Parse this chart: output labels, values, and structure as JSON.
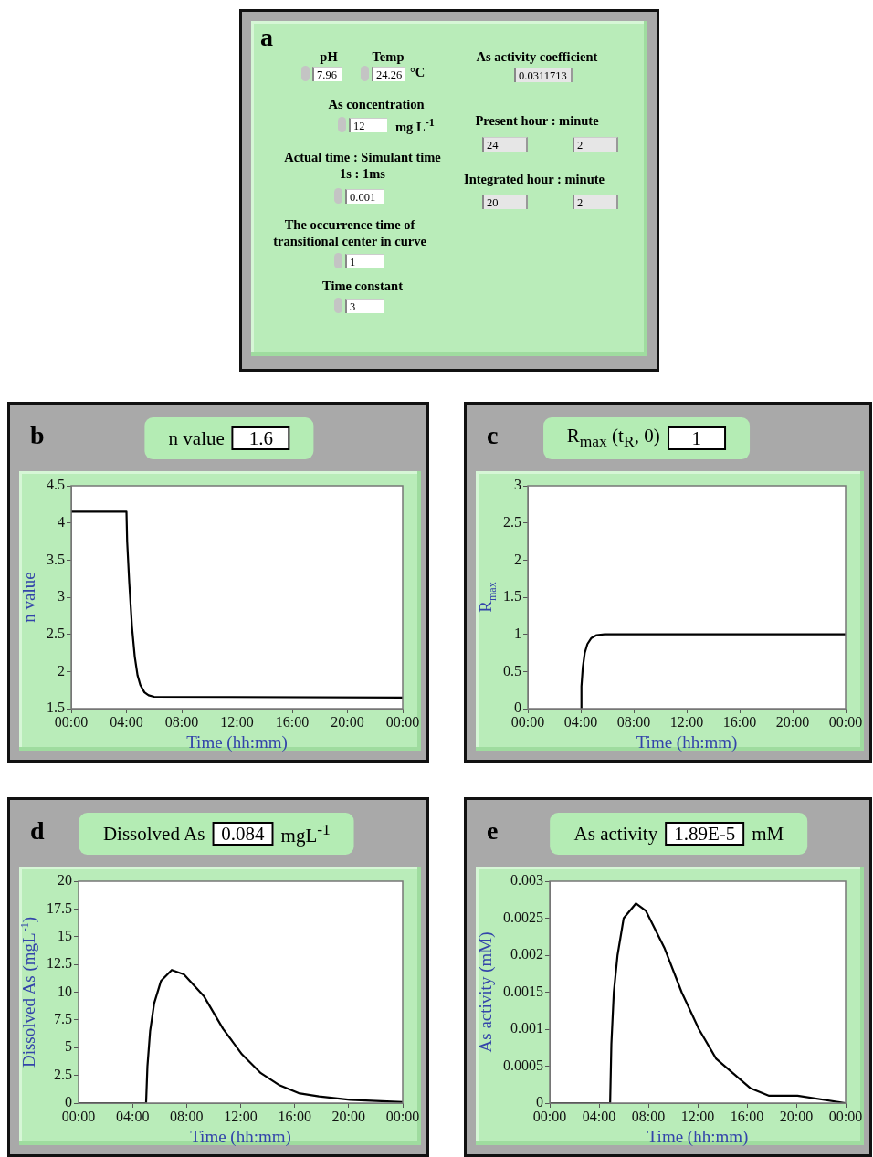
{
  "chart_data": [
    {
      "type": "other",
      "annotations": [
        "a",
        "pH",
        "7.96",
        "Temp",
        "24.26",
        "°C",
        "As concentration",
        "12",
        "mg L$^{-1}$",
        "Actual time : Simulant time",
        "1s : 1ms",
        "0.001",
        "The occurrence time of transitional center in curve",
        "1",
        "Time constant",
        "3",
        "As activity coefficient",
        "0.0311713",
        "Present hour : minute",
        "24",
        "2",
        "Integrated hour : minute",
        "20",
        "2"
      ]
    },
    {
      "type": "line",
      "title": "n value",
      "annotations": [
        "b",
        "1.6"
      ],
      "xlabel": "Time (hh:mm)",
      "ylabel": "n value",
      "x": [
        0,
        4.0,
        4.05,
        4.2,
        4.4,
        4.6,
        4.8,
        5.0,
        5.3,
        5.6,
        6.0,
        24
      ],
      "series": [
        {
          "color": "#000000",
          "values": [
            4.15,
            4.15,
            3.75,
            3.2,
            2.6,
            2.2,
            1.95,
            1.82,
            1.72,
            1.68,
            1.66,
            1.65
          ]
        }
      ],
      "xlim": [
        0,
        24
      ],
      "xticks": [
        {
          "value": 0,
          "label": "00:00"
        },
        {
          "value": 4,
          "label": "04:00"
        },
        {
          "value": 8,
          "label": "08:00"
        },
        {
          "value": 12,
          "label": "12:00"
        },
        {
          "value": 16,
          "label": "16:00"
        },
        {
          "value": 20,
          "label": "20:00"
        },
        {
          "value": 24,
          "label": "00:00"
        }
      ],
      "ylim": [
        1.5,
        4.5
      ],
      "yticks": [
        1.5,
        2,
        2.5,
        3,
        3.5,
        4,
        4.5
      ]
    },
    {
      "type": "line",
      "title": "R$_{max}$ (t$_{R}$, 0)",
      "annotations": [
        "c",
        "1"
      ],
      "xlabel": "Time (hh:mm)",
      "ylabel": "R$_{max}$",
      "x": [
        4.0,
        4.05,
        4.15,
        4.3,
        4.5,
        4.8,
        5.2,
        5.8,
        24
      ],
      "series": [
        {
          "color": "#000000",
          "values": [
            0,
            0.3,
            0.55,
            0.75,
            0.87,
            0.95,
            0.99,
            1.0,
            1.0
          ]
        }
      ],
      "xlim": [
        0,
        24
      ],
      "xticks": [
        {
          "value": 0,
          "label": "00:00"
        },
        {
          "value": 4,
          "label": "04:00"
        },
        {
          "value": 8,
          "label": "08:00"
        },
        {
          "value": 12,
          "label": "12:00"
        },
        {
          "value": 16,
          "label": "16:00"
        },
        {
          "value": 20,
          "label": "20:00"
        },
        {
          "value": 24,
          "label": "00:00"
        }
      ],
      "ylim": [
        0,
        3
      ],
      "yticks": [
        0,
        0.5,
        1,
        1.5,
        2,
        2.5,
        3
      ]
    },
    {
      "type": "line",
      "title": "Dissolved As",
      "annotations": [
        "d",
        "0.084",
        "mgL$^{-1}$"
      ],
      "xlabel": "Time (hh:mm)",
      "ylabel": "Dissolved As (mgL$^{-1}$)",
      "x": [
        0,
        5.0,
        5.1,
        5.3,
        5.6,
        6.1,
        6.9,
        7.8,
        9.3,
        10.7,
        12.1,
        13.5,
        14.9,
        16.3,
        17.8,
        20.1,
        24
      ],
      "series": [
        {
          "color": "#000000",
          "values": [
            0,
            0,
            3.3,
            6.5,
            9.0,
            11.0,
            12.0,
            11.6,
            9.6,
            6.7,
            4.4,
            2.7,
            1.6,
            0.9,
            0.6,
            0.3,
            0.1
          ]
        }
      ],
      "xlim": [
        0,
        24
      ],
      "xticks": [
        {
          "value": 0,
          "label": "00:00"
        },
        {
          "value": 4,
          "label": "04:00"
        },
        {
          "value": 8,
          "label": "08:00"
        },
        {
          "value": 12,
          "label": "12:00"
        },
        {
          "value": 16,
          "label": "16:00"
        },
        {
          "value": 20,
          "label": "20:00"
        },
        {
          "value": 24,
          "label": "00:00"
        }
      ],
      "ylim": [
        0,
        20
      ],
      "yticks": [
        0,
        2.5,
        5,
        7.5,
        10,
        12.5,
        15,
        17.5,
        20
      ]
    },
    {
      "type": "line",
      "title": "As activity",
      "annotations": [
        "e",
        "1.89E-5",
        "mM"
      ],
      "xlabel": "Time (hh:mm)",
      "ylabel": "As activity (mM)",
      "x": [
        0,
        4.9,
        5.0,
        5.2,
        5.5,
        6.0,
        7.0,
        7.8,
        9.3,
        10.7,
        12.1,
        13.5,
        14.9,
        16.3,
        17.8,
        20.1,
        24
      ],
      "series": [
        {
          "color": "#000000",
          "values": [
            0,
            0,
            0.0008,
            0.0015,
            0.002,
            0.0025,
            0.0027,
            0.0026,
            0.0021,
            0.0015,
            0.001,
            0.0006,
            0.0004,
            0.0002,
            0.0001,
            0.0001,
            0
          ]
        }
      ],
      "xlim": [
        0,
        24
      ],
      "xticks": [
        {
          "value": 0,
          "label": "00:00"
        },
        {
          "value": 4,
          "label": "04:00"
        },
        {
          "value": 8,
          "label": "08:00"
        },
        {
          "value": 12,
          "label": "12:00"
        },
        {
          "value": 16,
          "label": "16:00"
        },
        {
          "value": 20,
          "label": "20:00"
        },
        {
          "value": 24,
          "label": "00:00"
        }
      ],
      "ylim": [
        0,
        0.003
      ],
      "yticks": [
        0,
        0.0005,
        0.001,
        0.0015,
        0.002,
        0.0025,
        0.003
      ]
    }
  ]
}
